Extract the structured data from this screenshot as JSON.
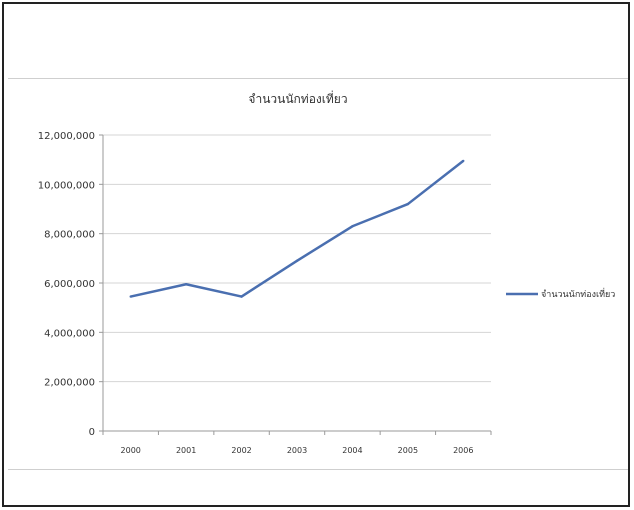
{
  "chart_data": {
    "type": "line",
    "title": "จำนวนนักท่องเที่ยว",
    "categories": [
      "2000",
      "2001",
      "2002",
      "2003",
      "2004",
      "2005",
      "2006"
    ],
    "series": [
      {
        "name": "จำนวนนักท่องเที่ยว",
        "values": [
          5450000,
          5950000,
          5450000,
          6900000,
          8300000,
          9200000,
          10950000
        ],
        "color": "#4a6fb0"
      }
    ],
    "y_ticks": [
      "0",
      "2,000,000",
      "4,000,000",
      "6,000,000",
      "8,000,000",
      "10,000,000",
      "12,000,000"
    ],
    "ylim": [
      0,
      12000000
    ],
    "grid": true,
    "legend_position": "right"
  }
}
